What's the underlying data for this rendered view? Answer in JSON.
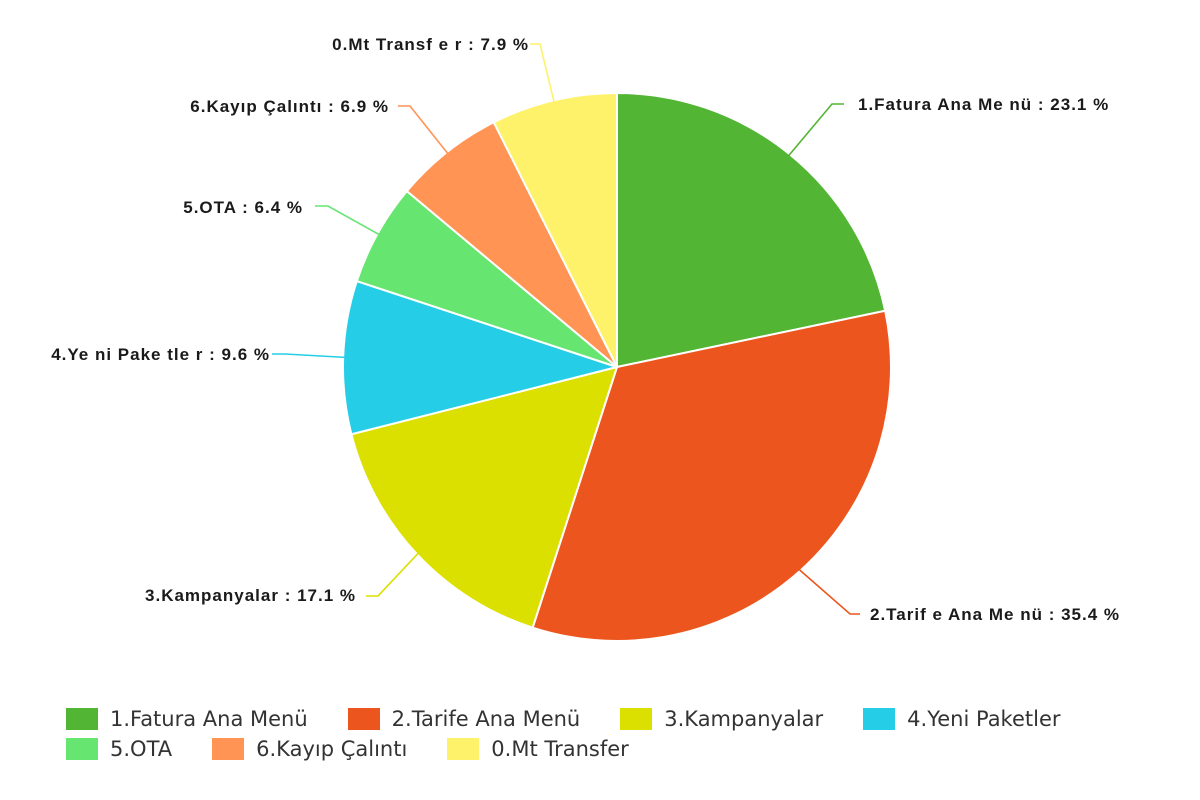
{
  "chart_data": {
    "type": "pie",
    "title": "",
    "series": [
      {
        "name": "",
        "slices": [
          {
            "label": "1.Fatura Ana Menü",
            "value": 23.1,
            "display": "1.Fatura Ana Me nü : 23.1 %",
            "color": "#52b534"
          },
          {
            "label": "2.Tarife Ana Menü",
            "value": 35.4,
            "display": "2.Tarif e Ana Me nü : 35.4 %",
            "color": "#ec561e"
          },
          {
            "label": "3.Kampanyalar",
            "value": 17.1,
            "display": "3.Kampanyalar : 17.1 %",
            "color": "#dce000"
          },
          {
            "label": "4.Yeni Paketler",
            "value": 9.6,
            "display": "4.Ye ni Pake tle r : 9.6 %",
            "color": "#26cde6"
          },
          {
            "label": "5.OTA",
            "value": 6.4,
            "display": "5.OTA : 6.4 %",
            "color": "#66e570"
          },
          {
            "label": "6.Kayıp Çalıntı",
            "value": 6.9,
            "display": "6.Kayıp Çalıntı : 6.9 %",
            "color": "#ff9455"
          },
          {
            "label": "0.Mt Transfer",
            "value": 7.9,
            "display": "0.Mt Transf e r : 7.9 %",
            "color": "#fff26b"
          }
        ]
      }
    ],
    "unit": "%",
    "legend_position": "bottom"
  },
  "legend": {
    "rows": [
      [
        {
          "label": "1.Fatura Ana Menü",
          "color": "#52b534"
        },
        {
          "label": "2.Tarife Ana Menü",
          "color": "#ec561e"
        },
        {
          "label": "3.Kampanyalar",
          "color": "#dce000"
        },
        {
          "label": "4.Yeni Paketler",
          "color": "#26cde6"
        }
      ],
      [
        {
          "label": "5.OTA",
          "color": "#66e570"
        },
        {
          "label": "6.Kayıp Çalıntı",
          "color": "#ff9455"
        },
        {
          "label": "0.Mt Transfer",
          "color": "#fff26b"
        }
      ]
    ]
  }
}
